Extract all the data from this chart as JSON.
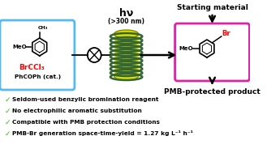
{
  "background_color": "#ffffff",
  "starting_material_label": "Starting material",
  "product_label": "PMB-protected product",
  "hv_line1": "hν",
  "hv_line2": "(>300 nm)",
  "blue_box_color": "#55bbee",
  "magenta_box_color": "#dd22aa",
  "bullet_color": "#22cc00",
  "bullet_points": [
    "Seldom-used benzylic bromination reagent",
    "No electrophilic aromatic substitution",
    "Compatible with PMB protection conditions",
    "PMB-Br generation space-time-yield = 1.27 kg L⁻¹ h⁻¹"
  ],
  "reagent_text_black": "PhCOPh (cat.)",
  "reagent_text_red": "BrCCl₃",
  "reactor_yellow": "#dddd00",
  "reactor_green": "#336633"
}
